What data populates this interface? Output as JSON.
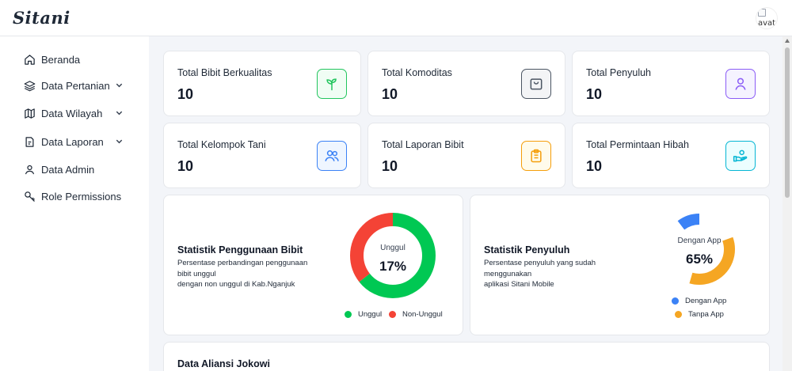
{
  "app": {
    "brand": "Sitani",
    "avatar_alt": "avat"
  },
  "sidebar": {
    "items": [
      {
        "label": "Beranda",
        "icon": "home-icon",
        "has_chevron": false
      },
      {
        "label": "Data Pertanian",
        "icon": "layers-icon",
        "has_chevron": true
      },
      {
        "label": "Data Wilayah",
        "icon": "map-icon",
        "has_chevron": true
      },
      {
        "label": "Data Laporan",
        "icon": "report-icon",
        "has_chevron": true
      },
      {
        "label": "Data Admin",
        "icon": "user-icon",
        "has_chevron": false
      },
      {
        "label": "Role Permissions",
        "icon": "key-icon",
        "has_chevron": false
      }
    ]
  },
  "stats": [
    {
      "label": "Total Bibit Berkualitas",
      "value": "10",
      "icon": "sprout-icon",
      "color": "#22c55e",
      "bg": "#f0fdf4"
    },
    {
      "label": "Total Komoditas",
      "value": "10",
      "icon": "package-icon",
      "color": "#4b5563",
      "bg": "#f3f4f6"
    },
    {
      "label": "Total Penyuluh",
      "value": "10",
      "icon": "user-icon",
      "color": "#8b5cf6",
      "bg": "#f5f3ff"
    },
    {
      "label": "Total Kelompok Tani",
      "value": "10",
      "icon": "users-icon",
      "color": "#3b82f6",
      "bg": "#eff6ff"
    },
    {
      "label": "Total Laporan Bibit",
      "value": "10",
      "icon": "clipboard-icon",
      "color": "#f59e0b",
      "bg": "#fffbeb"
    },
    {
      "label": "Total Permintaan Hibah",
      "value": "10",
      "icon": "hand-give-icon",
      "color": "#06b6d4",
      "bg": "#ecfeff"
    }
  ],
  "bibit_chart": {
    "title": "Statistik Penggunaan Bibit",
    "desc_lines": [
      "Persentase perbandingan penggunaan",
      "bibit unggul",
      "dengan non unggul di Kab.Nganjuk"
    ],
    "center_label": "Unggul",
    "center_value": "17%"
  },
  "penyuluh_chart": {
    "title": "Statistik Penyuluh",
    "desc_lines": [
      "Persentase penyuluh yang sudah",
      "menggunakan",
      "aplikasi Sitani Mobile"
    ],
    "center_label": "Dengan App",
    "center_value": "65%"
  },
  "chart_data": [
    {
      "type": "pie",
      "title": "Statistik Penggunaan Bibit",
      "categories": [
        "Unggul",
        "Non-Unggul"
      ],
      "values": [
        17,
        83
      ],
      "colors": [
        "#00c853",
        "#f44336"
      ],
      "legend": "bottom"
    },
    {
      "type": "pie",
      "title": "Statistik Penyuluh",
      "categories": [
        "Dengan App",
        "Tanpa App"
      ],
      "values": [
        65,
        35
      ],
      "colors": [
        "#3b82f6",
        "#f5a623"
      ],
      "legend": "bottom"
    }
  ],
  "aliansi": {
    "title": "Data Aliansi Jokowi"
  }
}
